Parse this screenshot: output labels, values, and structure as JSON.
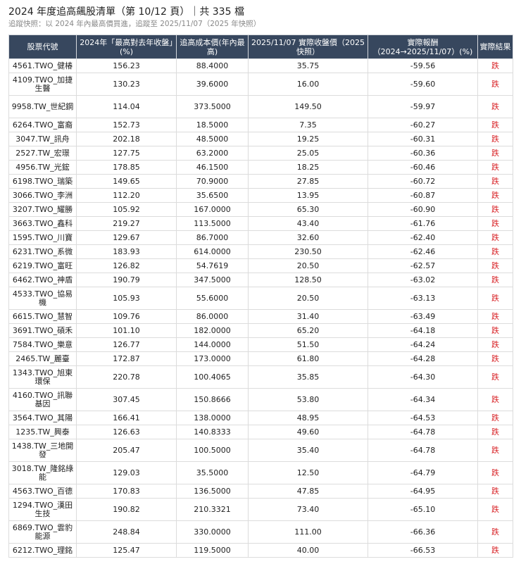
{
  "title": "2024 年度追高飆股清單（第 10/12 頁）｜共 335 檔",
  "subtitle": "追蹤快照：以 2024 年內最高價買進，追蹤至 2025/11/07（2025 年快照）",
  "columns": [
    "股票代號",
    "2024年「最高對去年收盤」(%)",
    "追高成本價(年內最高)",
    "2025/11/07 實際收盤價（2025快照）",
    "實際報酬（2024→2025/11/07）(%)",
    "實際結果"
  ],
  "colors": {
    "header_bg": "#37475e",
    "header_text": "#ffffff",
    "down": "#d9262a"
  },
  "rows": [
    {
      "stock": "4561.TWO_健椿",
      "pct": "156.23",
      "cost": "88.4000",
      "close": "35.75",
      "ret": "-59.56",
      "result": "跌"
    },
    {
      "stock": "4109.TWO_加捷生醫",
      "pct": "130.23",
      "cost": "39.6000",
      "close": "16.00",
      "ret": "-59.60",
      "result": "跌"
    },
    {
      "stock": "9958.TW_世紀鋼",
      "pct": "114.04",
      "cost": "373.5000",
      "close": "149.50",
      "ret": "-59.97",
      "result": "跌"
    },
    {
      "stock": "6264.TWO_富裔",
      "pct": "152.73",
      "cost": "18.5000",
      "close": "7.35",
      "ret": "-60.27",
      "result": "跌"
    },
    {
      "stock": "3047.TW_訊舟",
      "pct": "202.18",
      "cost": "48.5000",
      "close": "19.25",
      "ret": "-60.31",
      "result": "跌"
    },
    {
      "stock": "2527.TW_宏璟",
      "pct": "127.75",
      "cost": "63.2000",
      "close": "25.05",
      "ret": "-60.36",
      "result": "跌"
    },
    {
      "stock": "4956.TW_光鋐",
      "pct": "178.85",
      "cost": "46.1500",
      "close": "18.25",
      "ret": "-60.46",
      "result": "跌"
    },
    {
      "stock": "6198.TWO_瑞築",
      "pct": "149.65",
      "cost": "70.9000",
      "close": "27.85",
      "ret": "-60.72",
      "result": "跌"
    },
    {
      "stock": "3066.TWO_李洲",
      "pct": "112.20",
      "cost": "35.6500",
      "close": "13.95",
      "ret": "-60.87",
      "result": "跌"
    },
    {
      "stock": "3207.TWO_耀勝",
      "pct": "105.92",
      "cost": "167.0000",
      "close": "65.30",
      "ret": "-60.90",
      "result": "跌"
    },
    {
      "stock": "3663.TWO_鑫科",
      "pct": "219.27",
      "cost": "113.5000",
      "close": "43.40",
      "ret": "-61.76",
      "result": "跌"
    },
    {
      "stock": "1595.TWO_川寶",
      "pct": "129.67",
      "cost": "86.7000",
      "close": "32.60",
      "ret": "-62.40",
      "result": "跌"
    },
    {
      "stock": "6231.TWO_系微",
      "pct": "183.93",
      "cost": "614.0000",
      "close": "230.50",
      "ret": "-62.46",
      "result": "跌"
    },
    {
      "stock": "6219.TWO_富旺",
      "pct": "126.82",
      "cost": "54.7619",
      "close": "20.50",
      "ret": "-62.57",
      "result": "跌"
    },
    {
      "stock": "6462.TWO_神盾",
      "pct": "190.79",
      "cost": "347.5000",
      "close": "128.50",
      "ret": "-63.02",
      "result": "跌"
    },
    {
      "stock": "4533.TWO_協易機",
      "pct": "105.93",
      "cost": "55.6000",
      "close": "20.50",
      "ret": "-63.13",
      "result": "跌"
    },
    {
      "stock": "6615.TWO_慧智",
      "pct": "109.76",
      "cost": "86.0000",
      "close": "31.40",
      "ret": "-63.49",
      "result": "跌"
    },
    {
      "stock": "3691.TWO_碩禾",
      "pct": "101.10",
      "cost": "182.0000",
      "close": "65.20",
      "ret": "-64.18",
      "result": "跌"
    },
    {
      "stock": "7584.TWO_樂意",
      "pct": "126.77",
      "cost": "144.0000",
      "close": "51.50",
      "ret": "-64.24",
      "result": "跌"
    },
    {
      "stock": "2465.TW_麗臺",
      "pct": "172.87",
      "cost": "173.0000",
      "close": "61.80",
      "ret": "-64.28",
      "result": "跌"
    },
    {
      "stock": "1343.TWO_旭東環保",
      "pct": "220.78",
      "cost": "100.4065",
      "close": "35.85",
      "ret": "-64.30",
      "result": "跌"
    },
    {
      "stock": "4160.TWO_訊聯基因",
      "pct": "307.45",
      "cost": "150.8666",
      "close": "53.80",
      "ret": "-64.34",
      "result": "跌"
    },
    {
      "stock": "3564.TWO_其陽",
      "pct": "166.41",
      "cost": "138.0000",
      "close": "48.95",
      "ret": "-64.53",
      "result": "跌"
    },
    {
      "stock": "1235.TW_興泰",
      "pct": "126.63",
      "cost": "140.8333",
      "close": "49.60",
      "ret": "-64.78",
      "result": "跌"
    },
    {
      "stock": "1438.TW_三地開發",
      "pct": "205.47",
      "cost": "100.5000",
      "close": "35.40",
      "ret": "-64.78",
      "result": "跌"
    },
    {
      "stock": "3018.TW_隆銘綠能",
      "pct": "129.03",
      "cost": "35.5000",
      "close": "12.50",
      "ret": "-64.79",
      "result": "跌"
    },
    {
      "stock": "4563.TWO_百德",
      "pct": "170.83",
      "cost": "136.5000",
      "close": "47.85",
      "ret": "-64.95",
      "result": "跌"
    },
    {
      "stock": "1294.TWO_漢田生技",
      "pct": "190.82",
      "cost": "210.3321",
      "close": "73.40",
      "ret": "-65.10",
      "result": "跌"
    },
    {
      "stock": "6869.TWO_雲豹能源",
      "pct": "248.84",
      "cost": "330.0000",
      "close": "111.00",
      "ret": "-66.36",
      "result": "跌"
    },
    {
      "stock": "6212.TWO_理銘",
      "pct": "125.47",
      "cost": "119.5000",
      "close": "40.00",
      "ret": "-66.53",
      "result": "跌"
    }
  ]
}
